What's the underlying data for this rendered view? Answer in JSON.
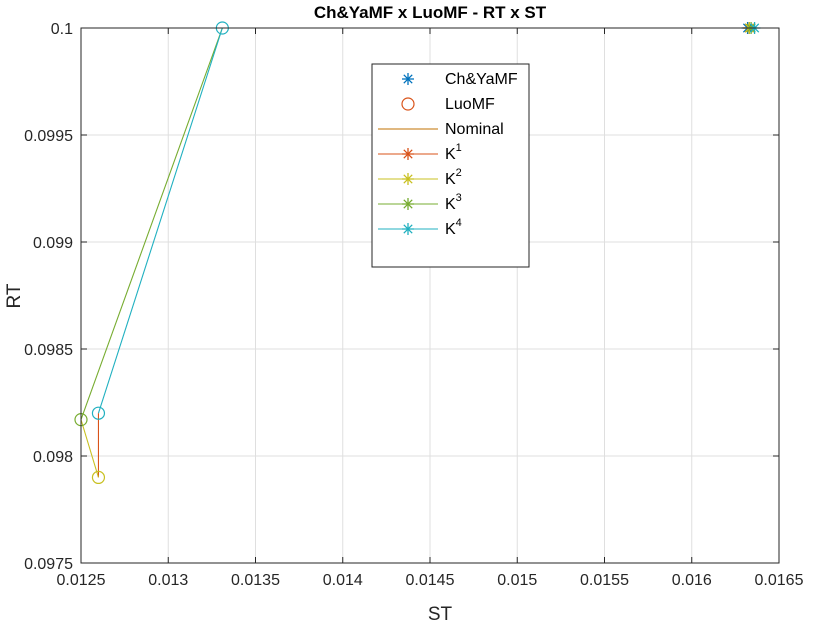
{
  "chart_data": {
    "type": "line",
    "title": "Ch&YaMF x LuoMF - RT  x ST",
    "xlabel": "ST",
    "ylabel": "RT",
    "xlim": [
      0.0125,
      0.0165
    ],
    "ylim": [
      0.0975,
      0.1
    ],
    "xticks": [
      0.0125,
      0.013,
      0.0135,
      0.014,
      0.0145,
      0.015,
      0.0155,
      0.016,
      0.0165
    ],
    "xtick_labels": [
      "0.0125",
      "0.013",
      "0.0135",
      "0.014",
      "0.0145",
      "0.015",
      "0.0155",
      "0.016",
      "0.0165"
    ],
    "yticks": [
      0.0975,
      0.098,
      0.0985,
      0.099,
      0.0995,
      0.1
    ],
    "ytick_labels": [
      "0.0975",
      "0.098",
      "0.0985",
      "0.099",
      "0.0995",
      "0.1"
    ],
    "grid": true,
    "legend_position": "top-center",
    "series": [
      {
        "name": "Ch&YaMF",
        "label": "Ch&YaMF",
        "color": "#0072BD",
        "line": false,
        "marker": "asterisk",
        "points": [
          [
            0.01632,
            0.1
          ]
        ]
      },
      {
        "name": "LuoMF",
        "label": "LuoMF",
        "color": "#D95319",
        "line": false,
        "marker": "circle",
        "points": []
      },
      {
        "name": "Nominal",
        "label": "Nominal",
        "color": "#C07000",
        "line": true,
        "marker": "none",
        "points": []
      },
      {
        "name": "K^1",
        "label": "K",
        "sup": "1",
        "color": "#D95319",
        "line": true,
        "marker": "asterisk",
        "points": [
          [
            0.0126,
            0.0982
          ],
          [
            0.0126,
            0.0979
          ]
        ],
        "star": [
          0.01633,
          0.1
        ]
      },
      {
        "name": "K^2",
        "label": "K",
        "sup": "2",
        "color": "#C8C020",
        "line": true,
        "marker": "asterisk",
        "points": [
          [
            0.0126,
            0.0979
          ],
          [
            0.0125,
            0.09817
          ]
        ],
        "circles": [
          [
            0.0126,
            0.0979
          ]
        ],
        "star": [
          0.01633,
          0.1
        ]
      },
      {
        "name": "K^3",
        "label": "K",
        "sup": "3",
        "color": "#77AC30",
        "line": true,
        "marker": "asterisk",
        "points": [
          [
            0.0125,
            0.09817
          ],
          [
            0.01331,
            0.1
          ]
        ],
        "circles": [
          [
            0.0125,
            0.09817
          ]
        ],
        "star": [
          0.01634,
          0.1
        ]
      },
      {
        "name": "K^4",
        "label": "K",
        "sup": "4",
        "color": "#20B0C0",
        "line": true,
        "marker": "asterisk",
        "points": [
          [
            0.0126,
            0.0982
          ],
          [
            0.01331,
            0.1
          ]
        ],
        "circles": [
          [
            0.0126,
            0.0982
          ],
          [
            0.01331,
            0.1
          ]
        ],
        "star": [
          0.01636,
          0.1
        ]
      }
    ]
  }
}
